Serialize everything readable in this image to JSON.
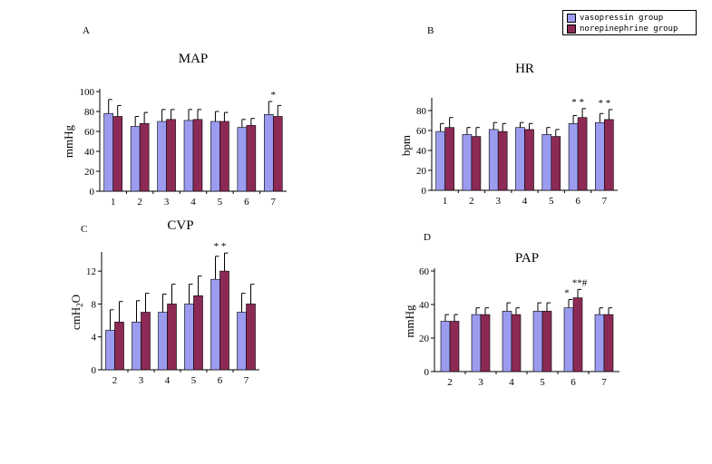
{
  "colors": {
    "vasopressin": "#9b9bf0",
    "norepinephrine": "#8c2a55",
    "axis": "#000000"
  },
  "legend": {
    "vasopressin": "vasopressin group",
    "norepinephrine": "norepinephrine group"
  },
  "chart_data": [
    {
      "type": "bar",
      "panel": "A",
      "title": "MAP",
      "xlabel": "",
      "ylabel": "mmHg",
      "categories": [
        "1",
        "2",
        "3",
        "4",
        "5",
        "6",
        "7"
      ],
      "ylim": [
        0,
        100
      ],
      "yticks": [
        0,
        20,
        40,
        60,
        80,
        100
      ],
      "series": [
        {
          "name": "vasopressin group",
          "values": [
            78,
            65,
            70,
            71,
            70,
            64,
            77
          ],
          "errors": [
            14,
            10,
            12,
            11,
            10,
            8,
            13
          ]
        },
        {
          "name": "norepinephrine group",
          "values": [
            75,
            68,
            72,
            72,
            70,
            66,
            75
          ],
          "errors": [
            11,
            11,
            10,
            10,
            9,
            7,
            11
          ]
        }
      ],
      "annotations": [
        {
          "category": "7",
          "text": "*"
        }
      ]
    },
    {
      "type": "bar",
      "panel": "B",
      "title": "HR",
      "xlabel": "",
      "ylabel": "bpm",
      "categories": [
        "1",
        "2",
        "3",
        "4",
        "5",
        "6",
        "7"
      ],
      "ylim": [
        0,
        90
      ],
      "yticks": [
        0,
        20,
        40,
        60,
        80
      ],
      "series": [
        {
          "name": "vasopressin group",
          "values": [
            59,
            56,
            61,
            63,
            56,
            67,
            68
          ],
          "errors": [
            8,
            7,
            7,
            5,
            7,
            8,
            9
          ]
        },
        {
          "name": "norepinephrine group",
          "values": [
            63,
            54,
            59,
            61,
            54,
            73,
            71
          ],
          "errors": [
            10,
            9,
            8,
            6,
            7,
            9,
            10
          ]
        }
      ],
      "annotations": [
        {
          "category": "6",
          "text": "* *"
        },
        {
          "category": "7",
          "text": "* *"
        }
      ]
    },
    {
      "type": "bar",
      "panel": "C",
      "title": "CVP",
      "xlabel": "",
      "ylabel": "cmH2O",
      "categories": [
        "2",
        "3",
        "4",
        "5",
        "6",
        "7"
      ],
      "ylim": [
        0,
        14
      ],
      "yticks": [
        0,
        4,
        8,
        12
      ],
      "series": [
        {
          "name": "vasopressin group",
          "values": [
            4.8,
            5.8,
            7,
            8,
            11,
            7
          ],
          "errors": [
            2.5,
            2.6,
            2.2,
            2.4,
            2.8,
            2.3
          ]
        },
        {
          "name": "norepinephrine group",
          "values": [
            5.8,
            7,
            8,
            9,
            12,
            8
          ],
          "errors": [
            2.5,
            2.3,
            2.4,
            2.4,
            2.2,
            2.4
          ]
        }
      ],
      "annotations": [
        {
          "category": "6",
          "text": "* *"
        }
      ]
    },
    {
      "type": "bar",
      "panel": "D",
      "title": "PAP",
      "xlabel": "",
      "ylabel": "mmHg",
      "categories": [
        "2",
        "3",
        "4",
        "5",
        "6",
        "7"
      ],
      "ylim": [
        0,
        60
      ],
      "yticks": [
        0,
        20,
        40,
        60
      ],
      "series": [
        {
          "name": "vasopressin group",
          "values": [
            30,
            34,
            36,
            36,
            38,
            34
          ],
          "errors": [
            4,
            4,
            5,
            5,
            5,
            4
          ]
        },
        {
          "name": "norepinephrine group",
          "values": [
            30,
            34,
            34,
            36,
            44,
            34
          ],
          "errors": [
            4,
            4,
            4,
            5,
            5,
            4
          ]
        }
      ],
      "annotations": [
        {
          "category": "6",
          "text": "*",
          "series": 0
        },
        {
          "category": "6",
          "text": "**#",
          "series": 1
        }
      ]
    }
  ]
}
